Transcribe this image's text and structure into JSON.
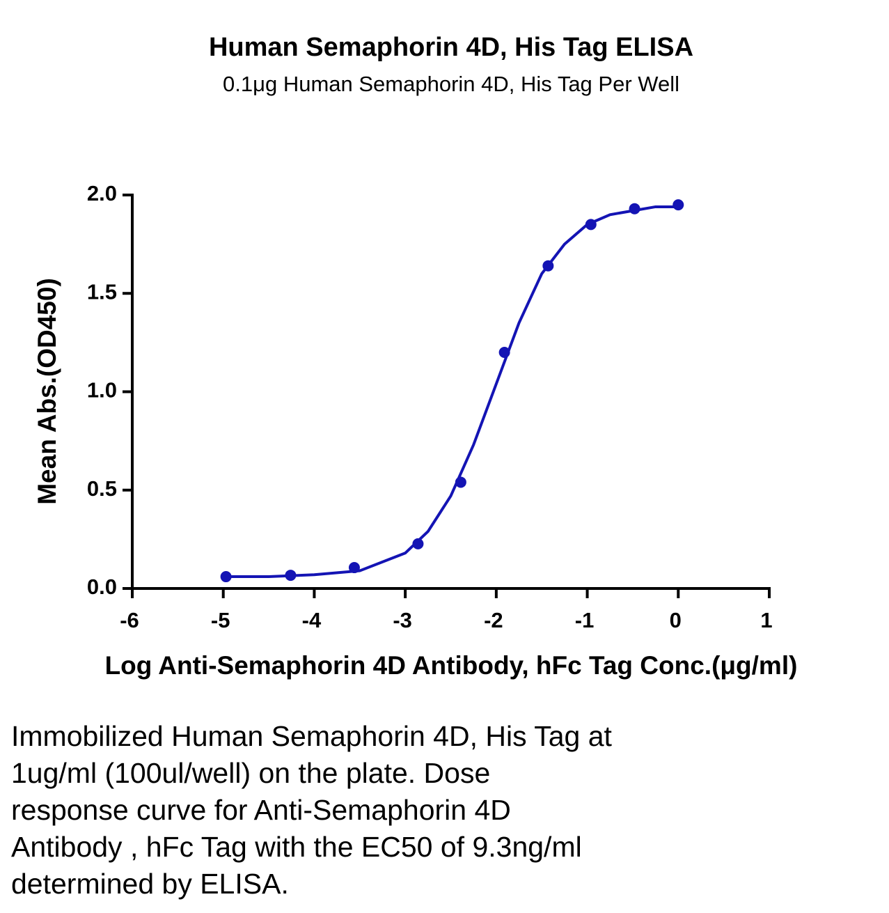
{
  "chart_data": {
    "type": "scatter",
    "title": "Human Semaphorin 4D, His Tag ELISA",
    "subtitle": "0.1μg Human Semaphorin 4D,  His Tag Per Well",
    "x_label": "Log Anti-Semaphorin 4D Antibody, hFc Tag Conc.(μg/ml)",
    "y_label": "Mean Abs.(OD450)",
    "color": "#1414b4",
    "x": [
      -4.97,
      -4.26,
      -3.56,
      -2.86,
      -2.39,
      -1.91,
      -1.43,
      -0.96,
      -0.48,
      0
    ],
    "values": [
      0.06,
      0.067,
      0.106,
      0.227,
      0.54,
      1.2,
      1.64,
      1.85,
      1.93,
      1.95
    ],
    "curve": {
      "x": [
        -4.97,
        -4.5,
        -4.0,
        -3.5,
        -3.0,
        -2.75,
        -2.5,
        -2.25,
        -2.0,
        -1.75,
        -1.5,
        -1.25,
        -1.0,
        -0.75,
        -0.5,
        -0.25,
        0
      ],
      "values": [
        0.06,
        0.06,
        0.07,
        0.09,
        0.18,
        0.29,
        0.47,
        0.73,
        1.04,
        1.35,
        1.6,
        1.75,
        1.85,
        1.9,
        1.92,
        1.94,
        1.94
      ]
    },
    "xlim": [
      -6,
      1
    ],
    "xticks": [
      -6,
      -5,
      -4,
      -3,
      -2,
      -1,
      0,
      1
    ],
    "ylim": [
      0,
      2
    ],
    "yticks": [
      {
        "value": 0,
        "label": "0.0"
      },
      0.5,
      {
        "value": 1,
        "label": "1.0"
      },
      1.5,
      {
        "value": 2,
        "label": "2.0"
      }
    ]
  },
  "caption": [
    "Immobilized Human Semaphorin 4D, His Tag at",
    "1ug/ml (100ul/well) on the plate. Dose",
    "response curve for Anti-Semaphorin 4D",
    "Antibody , hFc Tag with the EC50 of 9.3ng/ml",
    "determined by ELISA."
  ]
}
